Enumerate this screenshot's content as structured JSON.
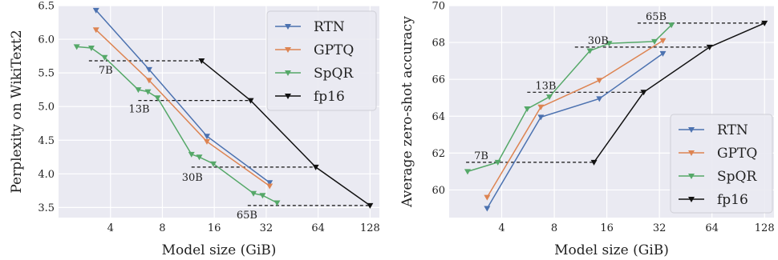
{
  "chart_data": [
    {
      "type": "line",
      "xlabel": "Model size (GiB)",
      "ylabel": "Perplexity on WikiText2",
      "xscale": "log2",
      "xlim": [
        2.0,
        145
      ],
      "ylim": [
        3.35,
        6.5
      ],
      "xticks": [
        4,
        8,
        16,
        32,
        64,
        128
      ],
      "xtick_labels": [
        "4",
        "8",
        "16",
        "32",
        "64",
        "128"
      ],
      "yticks": [
        3.5,
        4.0,
        4.5,
        5.0,
        5.5,
        6.0,
        6.5
      ],
      "ytick_labels": [
        "3.5",
        "4.0",
        "4.5",
        "5.0",
        "5.5",
        "6.0",
        "6.5"
      ],
      "grid": true,
      "legend_position": "top-right",
      "series": [
        {
          "name": "RTN",
          "color": "#4c72b0",
          "points": [
            [
              3.3,
              6.43
            ],
            [
              6.7,
              5.55
            ],
            [
              14.5,
              4.56
            ],
            [
              33.5,
              3.87
            ]
          ]
        },
        {
          "name": "GPTQ",
          "color": "#dd8452",
          "points": [
            [
              3.3,
              6.14
            ],
            [
              6.7,
              5.39
            ],
            [
              14.5,
              4.48
            ],
            [
              33.5,
              3.82
            ]
          ]
        },
        {
          "name": "SpQR",
          "color": "#55a868",
          "points": [
            [
              2.55,
              5.89
            ],
            [
              3.1,
              5.87
            ],
            [
              3.7,
              5.73
            ],
            [
              5.8,
              5.25
            ],
            [
              6.6,
              5.22
            ],
            [
              7.5,
              5.13
            ],
            [
              11.8,
              4.29
            ],
            [
              13.1,
              4.25
            ],
            [
              15.8,
              4.15
            ],
            [
              27.0,
              3.71
            ],
            [
              30.5,
              3.68
            ],
            [
              37.0,
              3.57
            ]
          ]
        },
        {
          "name": "fp16",
          "color": "#111111",
          "points": [
            [
              13.5,
              5.68
            ],
            [
              26.0,
              5.09
            ],
            [
              62.0,
              4.1
            ],
            [
              128,
              3.53
            ]
          ]
        }
      ],
      "reference_lines": [
        {
          "y": 5.68,
          "x_from": 3.0,
          "x_to": 13.5,
          "label": "7B"
        },
        {
          "y": 5.09,
          "x_from": 5.8,
          "x_to": 26.0,
          "label": "13B"
        },
        {
          "y": 4.1,
          "x_from": 11.8,
          "x_to": 62.0,
          "label": "30B"
        },
        {
          "y": 3.53,
          "x_from": 25.0,
          "x_to": 128,
          "label": "65B"
        }
      ]
    },
    {
      "type": "line",
      "xlabel": "Model size (GiB)",
      "ylabel": "Average zero-shot accuracy",
      "xscale": "log2",
      "xlim": [
        2.0,
        145
      ],
      "ylim": [
        58.5,
        70
      ],
      "xticks": [
        4,
        8,
        16,
        32,
        64,
        128
      ],
      "xtick_labels": [
        "4",
        "8",
        "16",
        "32",
        "64",
        "128"
      ],
      "yticks": [
        60,
        62,
        64,
        66,
        68,
        70
      ],
      "ytick_labels": [
        "60",
        "62",
        "64",
        "66",
        "68",
        "70"
      ],
      "grid": true,
      "legend_position": "bottom-right",
      "series": [
        {
          "name": "RTN",
          "color": "#4c72b0",
          "points": [
            [
              3.3,
              59.0
            ],
            [
              6.7,
              63.95
            ],
            [
              14.5,
              64.95
            ],
            [
              33.5,
              67.4
            ]
          ]
        },
        {
          "name": "GPTQ",
          "color": "#dd8452",
          "points": [
            [
              3.3,
              59.6
            ],
            [
              6.7,
              64.5
            ],
            [
              14.5,
              65.95
            ],
            [
              33.5,
              68.1
            ]
          ]
        },
        {
          "name": "SpQR",
          "color": "#55a868",
          "points": [
            [
              2.55,
              61.0
            ],
            [
              3.8,
              61.5
            ],
            [
              5.6,
              64.4
            ],
            [
              7.5,
              65.05
            ],
            [
              12.8,
              67.55
            ],
            [
              16.5,
              67.95
            ],
            [
              30.0,
              68.05
            ],
            [
              37.5,
              68.95
            ]
          ]
        },
        {
          "name": "fp16",
          "color": "#111111",
          "points": [
            [
              13.5,
              61.5
            ],
            [
              26.0,
              65.3
            ],
            [
              62.0,
              67.75
            ],
            [
              128,
              69.05
            ]
          ]
        }
      ],
      "reference_lines": [
        {
          "y": 61.5,
          "x_from": 2.5,
          "x_to": 13.5,
          "label": "7B"
        },
        {
          "y": 65.3,
          "x_from": 5.6,
          "x_to": 26.0,
          "label": "13B"
        },
        {
          "y": 67.75,
          "x_from": 10.5,
          "x_to": 62.0,
          "label": "30B"
        },
        {
          "y": 69.05,
          "x_from": 24.0,
          "x_to": 128,
          "label": "65B"
        }
      ]
    }
  ]
}
